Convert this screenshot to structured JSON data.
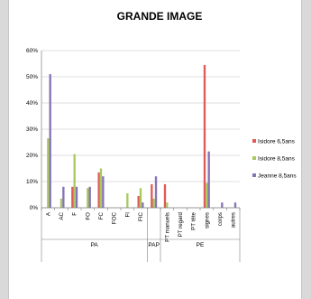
{
  "chart_data": {
    "type": "bar",
    "title": "GRANDE  IMAGE",
    "categories": [
      "A",
      "AC",
      "F",
      "FO",
      "FC",
      "FOC",
      "FI",
      "FIC",
      "",
      "PT manuels",
      "PT regard",
      "PT tête",
      "signes",
      "corps",
      "autres"
    ],
    "groups": [
      {
        "label": "PA",
        "span": [
          0,
          7
        ]
      },
      {
        "label": "PAP",
        "span": [
          8,
          8
        ]
      },
      {
        "label": "PE",
        "span": [
          9,
          14
        ]
      }
    ],
    "series": [
      {
        "name": "Isidore 6,5ans",
        "color": "#e05a5a",
        "values": [
          0,
          0,
          8,
          0,
          13.5,
          0,
          0,
          4.5,
          9,
          9,
          0,
          0,
          54.5,
          0,
          0
        ]
      },
      {
        "name": "Isidore 8,5ans",
        "color": "#a9c95e",
        "values": [
          26.5,
          3.5,
          20.5,
          7.5,
          15,
          0,
          5.5,
          7.5,
          3.5,
          2,
          0,
          0,
          9.5,
          0,
          0
        ]
      },
      {
        "name": "Jeanne 8,5ans",
        "color": "#8574b6",
        "values": [
          51,
          8,
          8,
          8,
          12,
          0,
          0,
          2,
          12,
          0,
          0,
          0,
          21.5,
          2,
          2
        ]
      }
    ],
    "ylim": [
      0,
      60
    ],
    "yticks": [
      "0%",
      "10%",
      "20%",
      "30%",
      "40%",
      "50%",
      "60%"
    ],
    "grid": true,
    "legend_position": "right"
  }
}
